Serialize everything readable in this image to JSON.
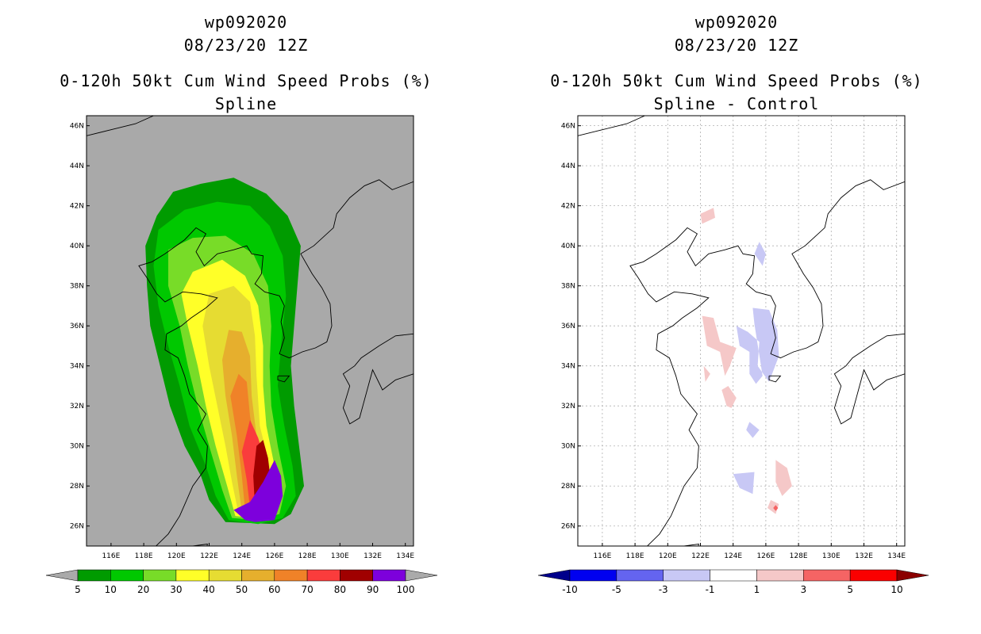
{
  "colors": {
    "map_bg": "#a9a9a9",
    "coast": "#000000"
  },
  "chart_data": [
    {
      "type": "heatmap",
      "id": "left",
      "title_lines": [
        "wp092020",
        "08/23/20 12Z",
        "0-120h 50kt Cum Wind Speed Probs (%)",
        "Spline"
      ],
      "lon_range": [
        114.5,
        134.5
      ],
      "lat_range": [
        25.0,
        46.5
      ],
      "lon_ticks": [
        "116E",
        "118E",
        "120E",
        "122E",
        "124E",
        "126E",
        "128E",
        "130E",
        "132E",
        "134E"
      ],
      "lat_ticks": [
        "26N",
        "28N",
        "30N",
        "32N",
        "34N",
        "36N",
        "38N",
        "40N",
        "42N",
        "44N",
        "46N"
      ],
      "grid": false,
      "colorbar": {
        "labels": [
          "5",
          "10",
          "20",
          "30",
          "40",
          "50",
          "60",
          "70",
          "80",
          "90",
          "100"
        ],
        "colors": [
          "#009b00",
          "#00c800",
          "#78dc28",
          "#ffff28",
          "#e6dc32",
          "#e6af2d",
          "#f08228",
          "#fa3c3c",
          "#a00000",
          "#7d00dc"
        ],
        "end_colors": [
          "#aaaaaa",
          "#aaaaaa"
        ]
      },
      "contours": [
        {
          "level": 5,
          "color": "#009b00",
          "pts": [
            [
              123,
              26.2
            ],
            [
              122,
              27.3
            ],
            [
              121.5,
              28.5
            ],
            [
              120.5,
              30
            ],
            [
              119.6,
              32
            ],
            [
              119.0,
              34
            ],
            [
              118.4,
              36
            ],
            [
              118.2,
              38
            ],
            [
              118.1,
              40
            ],
            [
              118.8,
              41.5
            ],
            [
              119.8,
              42.7
            ],
            [
              121.5,
              43.1
            ],
            [
              123.5,
              43.4
            ],
            [
              125.5,
              42.6
            ],
            [
              126.8,
              41.5
            ],
            [
              127.6,
              40
            ],
            [
              127.4,
              38
            ],
            [
              127.2,
              36
            ],
            [
              127.0,
              34
            ],
            [
              127.2,
              32
            ],
            [
              127.5,
              30
            ],
            [
              127.8,
              28
            ],
            [
              127.0,
              26.6
            ],
            [
              126,
              26.1
            ]
          ]
        },
        {
          "level": 10,
          "color": "#00c800",
          "pts": [
            [
              123.2,
              26.3
            ],
            [
              122.4,
              27.5
            ],
            [
              121.8,
              29
            ],
            [
              120.8,
              31
            ],
            [
              120.2,
              33
            ],
            [
              119.5,
              35
            ],
            [
              118.9,
              37
            ],
            [
              118.6,
              39
            ],
            [
              118.9,
              40.8
            ],
            [
              120.5,
              41.8
            ],
            [
              122.5,
              42.2
            ],
            [
              124.5,
              42
            ],
            [
              125.7,
              41
            ],
            [
              126.5,
              39.5
            ],
            [
              126.7,
              37.5
            ],
            [
              126.4,
              35
            ],
            [
              126.2,
              33
            ],
            [
              126.6,
              31
            ],
            [
              127.1,
              29
            ],
            [
              127.3,
              27.5
            ],
            [
              126.5,
              26.4
            ],
            [
              125,
              26.1
            ]
          ]
        },
        {
          "level": 20,
          "color": "#78dc28",
          "pts": [
            [
              123.4,
              26.4
            ],
            [
              122.8,
              27.8
            ],
            [
              122.0,
              30
            ],
            [
              121.3,
              32
            ],
            [
              120.7,
              34
            ],
            [
              120.2,
              36
            ],
            [
              119.5,
              38
            ],
            [
              119.5,
              39.8
            ],
            [
              121.0,
              40.4
            ],
            [
              123.0,
              40.5
            ],
            [
              124.7,
              39.6
            ],
            [
              125.6,
              38
            ],
            [
              125.8,
              36
            ],
            [
              125.7,
              34
            ],
            [
              125.8,
              32
            ],
            [
              126.2,
              30
            ],
            [
              126.7,
              28
            ],
            [
              126.3,
              26.6
            ],
            [
              125,
              26.3
            ]
          ]
        },
        {
          "level": 30,
          "color": "#ffff28",
          "pts": [
            [
              123.6,
              26.5
            ],
            [
              123.1,
              28
            ],
            [
              122.4,
              30
            ],
            [
              121.8,
              32
            ],
            [
              121.3,
              34
            ],
            [
              120.7,
              36
            ],
            [
              120.3,
              37.6
            ],
            [
              121.0,
              38.7
            ],
            [
              122.8,
              39.3
            ],
            [
              124.2,
              38.5
            ],
            [
              125.0,
              37
            ],
            [
              125.3,
              35
            ],
            [
              125.3,
              33
            ],
            [
              125.5,
              31
            ],
            [
              126.0,
              29
            ],
            [
              126.2,
              27.5
            ],
            [
              125.8,
              26.5
            ],
            [
              124.8,
              26.4
            ]
          ]
        },
        {
          "level": 40,
          "color": "#e6dc32",
          "pts": [
            [
              123.8,
              26.6
            ],
            [
              123.4,
              28.2
            ],
            [
              123.0,
              30
            ],
            [
              122.5,
              32
            ],
            [
              122.0,
              34
            ],
            [
              121.6,
              36
            ],
            [
              122.0,
              37.6
            ],
            [
              123.5,
              38
            ],
            [
              124.5,
              37.2
            ],
            [
              124.8,
              35.5
            ],
            [
              124.9,
              33.5
            ],
            [
              125.1,
              31
            ],
            [
              125.7,
              29
            ],
            [
              125.9,
              27.5
            ],
            [
              125.5,
              26.6
            ],
            [
              124.7,
              26.5
            ]
          ]
        },
        {
          "level": 50,
          "color": "#e6af2d",
          "pts": [
            [
              124.0,
              26.7
            ],
            [
              123.7,
              28.5
            ],
            [
              123.4,
              30.5
            ],
            [
              123.0,
              32.5
            ],
            [
              122.8,
              34.3
            ],
            [
              123.2,
              35.8
            ],
            [
              124.0,
              35.7
            ],
            [
              124.5,
              34.5
            ],
            [
              124.6,
              32.5
            ],
            [
              124.9,
              30.5
            ],
            [
              125.5,
              28.5
            ],
            [
              125.6,
              27.2
            ],
            [
              125.1,
              26.6
            ]
          ]
        },
        {
          "level": 60,
          "color": "#f08228",
          "pts": [
            [
              124.2,
              26.8
            ],
            [
              124.0,
              28.5
            ],
            [
              123.7,
              30.5
            ],
            [
              123.3,
              32.5
            ],
            [
              123.8,
              33.6
            ],
            [
              124.3,
              33.2
            ],
            [
              124.5,
              31.5
            ],
            [
              124.8,
              30
            ],
            [
              125.4,
              28.5
            ],
            [
              125.5,
              27.3
            ],
            [
              125.0,
              26.7
            ]
          ]
        },
        {
          "level": 70,
          "color": "#fa3c3c",
          "pts": [
            [
              124.5,
              26.9
            ],
            [
              124.3,
              28.3
            ],
            [
              124.0,
              29.7
            ],
            [
              124.5,
              31.3
            ],
            [
              125.0,
              30.4
            ],
            [
              125.5,
              29
            ],
            [
              125.7,
              27.6
            ],
            [
              125.3,
              26.8
            ]
          ]
        },
        {
          "level": 80,
          "color": "#a00000",
          "pts": [
            [
              124.8,
              27.0
            ],
            [
              124.7,
              28.5
            ],
            [
              124.9,
              30
            ],
            [
              125.3,
              30.3
            ],
            [
              125.6,
              29.4
            ],
            [
              125.8,
              28
            ],
            [
              125.6,
              27.1
            ]
          ]
        },
        {
          "level": 90,
          "color": "#7d00dc",
          "pts": [
            [
              124.2,
              26.3
            ],
            [
              124.8,
              26.2
            ],
            [
              126.0,
              26.3
            ],
            [
              126.5,
              27.5
            ],
            [
              126.4,
              28.5
            ],
            [
              126.0,
              29.3
            ],
            [
              125.3,
              28.2
            ],
            [
              124.5,
              27.2
            ],
            [
              123.5,
              26.8
            ]
          ]
        }
      ]
    },
    {
      "type": "heatmap",
      "id": "right",
      "title_lines": [
        "wp092020",
        "08/23/20 12Z",
        "0-120h 50kt Cum Wind Speed Probs (%)",
        "Spline - Control"
      ],
      "lon_range": [
        114.5,
        134.5
      ],
      "lat_range": [
        25.0,
        46.5
      ],
      "lon_ticks": [
        "116E",
        "118E",
        "120E",
        "122E",
        "124E",
        "126E",
        "128E",
        "130E",
        "132E",
        "134E"
      ],
      "lat_ticks": [
        "26N",
        "28N",
        "30N",
        "32N",
        "34N",
        "36N",
        "38N",
        "40N",
        "42N",
        "44N",
        "46N"
      ],
      "grid": true,
      "colorbar": {
        "labels": [
          "-10",
          "-5",
          "-3",
          "-1",
          "1",
          "3",
          "5",
          "10"
        ],
        "colors": [
          "#0000f0",
          "#6464f0",
          "#c8c8f5",
          "#ffffff",
          "#f5c8c8",
          "#f56464",
          "#fa0000"
        ],
        "end_colors": [
          "#00008b",
          "#8b0000"
        ]
      },
      "contours": [
        {
          "level": -3,
          "color": "#c8c8f5",
          "pts": [
            [
              125.2,
              36.9
            ],
            [
              126.2,
              36.8
            ],
            [
              126.7,
              35.8
            ],
            [
              126.8,
              34.5
            ],
            [
              126.2,
              33.2
            ],
            [
              125.5,
              34
            ],
            [
              125.6,
              35.2
            ],
            [
              124.9,
              35.7
            ],
            [
              124.2,
              36
            ],
            [
              124.4,
              35
            ],
            [
              125.0,
              34.7
            ],
            [
              125.0,
              33.6
            ],
            [
              125.4,
              33.1
            ],
            [
              125.8,
              33.5
            ],
            [
              125.3,
              36.1
            ]
          ]
        },
        {
          "level": -3,
          "color": "#c8c8f5",
          "pts": [
            [
              125.6,
              40.2
            ],
            [
              126.0,
              39.6
            ],
            [
              125.8,
              39.0
            ],
            [
              125.3,
              39.6
            ]
          ]
        },
        {
          "level": -3,
          "color": "#c8c8f5",
          "pts": [
            [
              125.0,
              31.2
            ],
            [
              125.6,
              30.8
            ],
            [
              125.2,
              30.4
            ],
            [
              124.8,
              30.8
            ]
          ]
        },
        {
          "level": -3,
          "color": "#c8c8f5",
          "pts": [
            [
              124.0,
              28.6
            ],
            [
              125.3,
              28.7
            ],
            [
              125.2,
              27.6
            ],
            [
              124.4,
              27.9
            ]
          ]
        },
        {
          "level": 3,
          "color": "#f5c8c8",
          "pts": [
            [
              122.0,
              41.6
            ],
            [
              122.8,
              41.9
            ],
            [
              122.9,
              41.4
            ],
            [
              122.1,
              41.1
            ]
          ]
        },
        {
          "level": 3,
          "color": "#f5c8c8",
          "pts": [
            [
              122.1,
              36.5
            ],
            [
              122.8,
              36.4
            ],
            [
              123.2,
              35.2
            ],
            [
              124.2,
              34.9
            ],
            [
              123.8,
              34.0
            ],
            [
              123.5,
              33.5
            ],
            [
              123.2,
              34.7
            ],
            [
              122.4,
              35.0
            ]
          ]
        },
        {
          "level": 3,
          "color": "#f5c8c8",
          "pts": [
            [
              122.2,
              34.0
            ],
            [
              122.6,
              33.6
            ],
            [
              122.3,
              33.2
            ]
          ]
        },
        {
          "level": 3,
          "color": "#f5c8c8",
          "pts": [
            [
              123.3,
              32.8
            ],
            [
              123.7,
              33.0
            ],
            [
              124.2,
              32.4
            ],
            [
              123.9,
              31.9
            ],
            [
              123.6,
              32.0
            ]
          ]
        },
        {
          "level": 3,
          "color": "#f5c8c8",
          "pts": [
            [
              126.6,
              29.3
            ],
            [
              127.3,
              28.9
            ],
            [
              127.6,
              28.0
            ],
            [
              127.0,
              27.5
            ],
            [
              126.6,
              28.2
            ]
          ]
        },
        {
          "level": 3,
          "color": "#f5c8c8",
          "pts": [
            [
              126.3,
              27.3
            ],
            [
              126.8,
              27.1
            ],
            [
              126.6,
              26.6
            ],
            [
              126.1,
              26.9
            ]
          ]
        },
        {
          "level": 5,
          "color": "#f56464",
          "pts": [
            [
              126.6,
              27.05
            ],
            [
              126.75,
              26.9
            ],
            [
              126.6,
              26.75
            ],
            [
              126.45,
              26.9
            ]
          ]
        }
      ]
    }
  ]
}
